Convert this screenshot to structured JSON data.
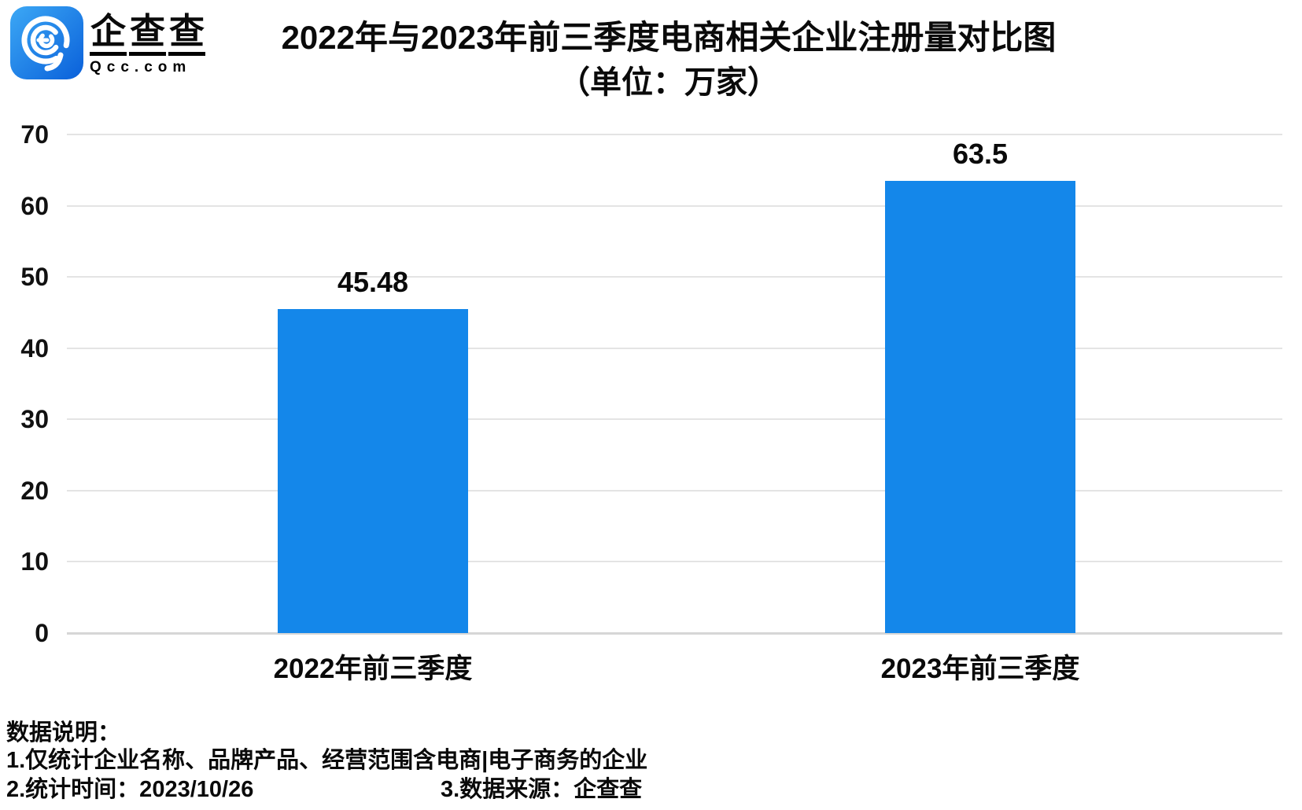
{
  "logo": {
    "chars": [
      "企",
      "查",
      "查"
    ],
    "domain": "Qcc.com"
  },
  "title": {
    "line1": "2022年与2023年前三季度电商相关企业注册量对比图",
    "line2": "（单位：万家）"
  },
  "chart_data": {
    "type": "bar",
    "title": "2022年与2023年前三季度电商相关企业注册量对比图",
    "subtitle": "（单位：万家）",
    "categories": [
      "2022年前三季度",
      "2023年前三季度"
    ],
    "values": [
      45.48,
      63.5
    ],
    "value_labels": [
      "45.48",
      "63.5"
    ],
    "unit": "万家",
    "xlabel": "",
    "ylabel": "",
    "ylim": [
      0,
      70
    ],
    "yticks": [
      0,
      10,
      20,
      30,
      40,
      50,
      60,
      70
    ],
    "grid": true,
    "legend": "none",
    "bar_color": "#1487EA"
  },
  "footer": {
    "heading": "数据说明：",
    "note1": "1.仅统计企业名称、品牌产品、经营范围含电商|电子商务的企业",
    "note2": "2.统计时间：2023/10/26",
    "note3": "3.数据来源：企查查"
  },
  "colors": {
    "bar": "#1487EA",
    "gridline": "#e4e4e4",
    "axis_line": "#d6d6d6",
    "text": "#0a0a0a",
    "logo_gradient_start": "#3CA8F5",
    "logo_gradient_end": "#0A60DA"
  }
}
